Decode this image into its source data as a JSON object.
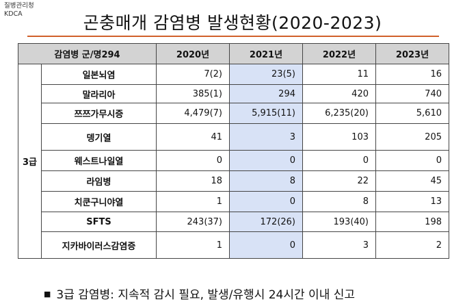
{
  "agency": {
    "name_ko": "질병관리청",
    "name_en": "KDCA"
  },
  "title": "곤충매개 감염병 발생현황(2020-2023)",
  "table": {
    "header_label": "감염병 군/명294",
    "years": [
      "2020년",
      "2021년",
      "2022년",
      "2023년"
    ],
    "grade": "3급",
    "rows": [
      {
        "name": "일본뇌염",
        "values": [
          "7(2)",
          "23(5)",
          "11",
          "16"
        ]
      },
      {
        "name": "말라리아",
        "values": [
          "385(1)",
          "294",
          "420",
          "740"
        ]
      },
      {
        "name": "쯔쯔가무시증",
        "values": [
          "4,479(7)",
          "5,915(11)",
          "6,235(20)",
          "5,610"
        ]
      },
      {
        "name": "뎅기열",
        "values": [
          "41",
          "3",
          "103",
          "205"
        ]
      },
      {
        "name": "웨스트나일열",
        "values": [
          "0",
          "0",
          "0",
          "0"
        ]
      },
      {
        "name": "라임병",
        "values": [
          "18",
          "8",
          "22",
          "45"
        ]
      },
      {
        "name": "치쿤구니야열",
        "values": [
          "1",
          "0",
          "8",
          "13"
        ]
      },
      {
        "name": "SFTS",
        "values": [
          "243(37)",
          "172(26)",
          "193(40)",
          "198"
        ]
      },
      {
        "name": "지카바이러스감염증",
        "values": [
          "1",
          "0",
          "3",
          "2"
        ]
      }
    ]
  },
  "note": {
    "bullet": "■",
    "text": "3급 감염병: 지속적 감시 필요, 발생/유행시 24시간 이내 신고"
  }
}
